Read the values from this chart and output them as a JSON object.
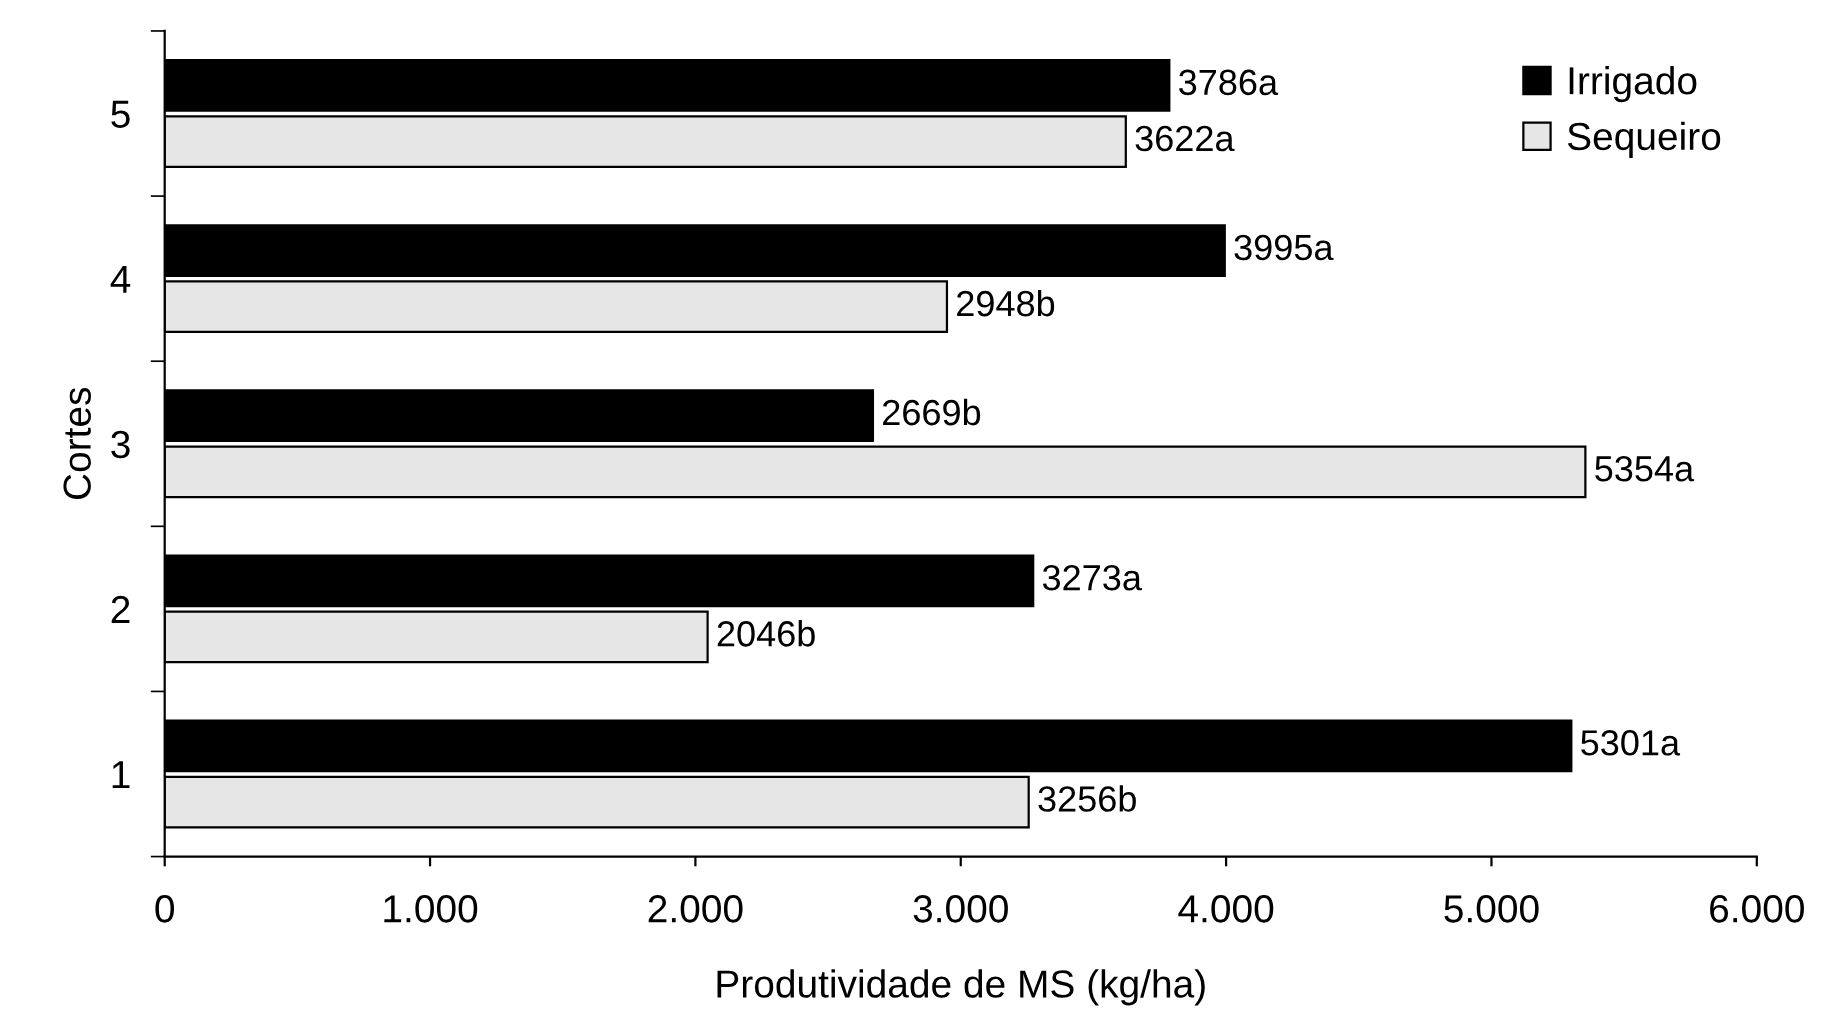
{
  "chart_data": {
    "type": "bar",
    "orientation": "horizontal",
    "xlabel": "Produtividade de MS (kg/ha)",
    "ylabel": "Cortes",
    "categories": [
      "5",
      "4",
      "3",
      "2",
      "1"
    ],
    "series": [
      {
        "name": "Irrigado",
        "color": "#000000",
        "values": [
          3786,
          3995,
          2669,
          3273,
          5301
        ],
        "value_labels": [
          "3786a",
          "3995a",
          "2669b",
          "3273a",
          "5301a"
        ]
      },
      {
        "name": "Sequeiro",
        "color": "#e6e6e6",
        "values": [
          3622,
          2948,
          5354,
          2046,
          3256
        ],
        "value_labels": [
          "3622a",
          "2948b",
          "5354a",
          "2046b",
          "3256b"
        ]
      }
    ],
    "xlim": [
      0,
      6000
    ],
    "xticks": [
      0,
      {
        "value": 1000,
        "label": "1.000"
      },
      {
        "value": 2000,
        "label": "2.000"
      },
      {
        "value": 3000,
        "label": "3.000"
      },
      {
        "value": 4000,
        "label": "4.000"
      },
      {
        "value": 5000,
        "label": "5.000"
      },
      {
        "value": 6000,
        "label": "6.000"
      }
    ],
    "grid": false,
    "legend": "top right"
  }
}
